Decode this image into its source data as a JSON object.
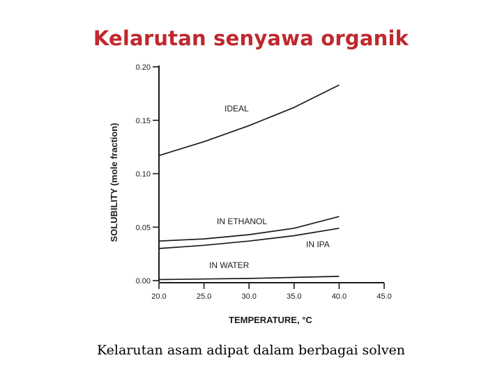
{
  "slide": {
    "title": "Kelarutan senyawa organik",
    "caption": "Kelarutan asam adipat dalam berbagai solven"
  },
  "chart_data": {
    "type": "line",
    "title": "",
    "xlabel": "TEMPERATURE, °C",
    "ylabel": "SOLUBILITY (mole fraction)",
    "xlim": [
      20.0,
      45.0
    ],
    "ylim": [
      0.0,
      0.2
    ],
    "x_ticks": [
      "20.0",
      "25.0",
      "30.0",
      "35.0",
      "40.0",
      "45.0"
    ],
    "y_ticks": [
      "0.20",
      "0.15",
      "0.10",
      "0.05",
      "0.00"
    ],
    "grid": false,
    "legend": "none",
    "series": [
      {
        "name": "IDEAL",
        "x": [
          20,
          25,
          30,
          35,
          40
        ],
        "y": [
          0.117,
          0.13,
          0.145,
          0.162,
          0.183
        ]
      },
      {
        "name": "IN ETHANOL",
        "x": [
          20,
          25,
          30,
          35,
          40
        ],
        "y": [
          0.037,
          0.039,
          0.043,
          0.049,
          0.06
        ]
      },
      {
        "name": "IN IPA",
        "x": [
          20,
          25,
          30,
          35,
          40
        ],
        "y": [
          0.03,
          0.033,
          0.037,
          0.042,
          0.049
        ]
      },
      {
        "name": "IN WATER",
        "x": [
          20,
          25,
          30,
          35,
          40
        ],
        "y": [
          0.001,
          0.0015,
          0.002,
          0.003,
          0.004
        ]
      }
    ],
    "colors": {
      "line": "#1a1a1a"
    }
  }
}
